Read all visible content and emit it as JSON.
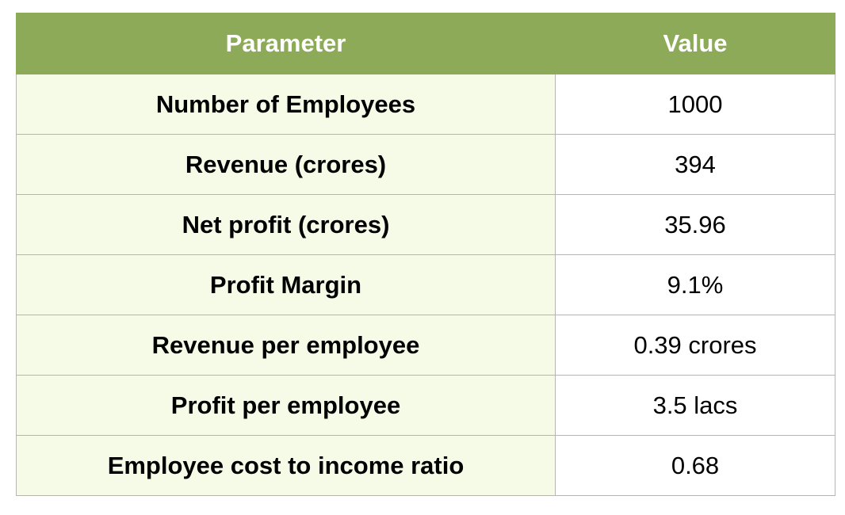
{
  "table": {
    "headers": [
      "Parameter",
      "Value"
    ],
    "rows": [
      {
        "parameter": "Number of Employees",
        "value": "1000"
      },
      {
        "parameter": "Revenue (crores)",
        "value": "394"
      },
      {
        "parameter": "Net profit (crores)",
        "value": "35.96"
      },
      {
        "parameter": "Profit Margin",
        "value": "9.1%"
      },
      {
        "parameter": "Revenue per employee",
        "value": "0.39 crores"
      },
      {
        "parameter": "Profit per employee",
        "value": "3.5 lacs"
      },
      {
        "parameter": "Employee cost to income ratio",
        "value": "0.68"
      }
    ]
  },
  "colors": {
    "header_bg": "#8caa58",
    "header_text": "#ffffff",
    "param_bg": "#f5fbe6",
    "value_bg": "#ffffff"
  }
}
